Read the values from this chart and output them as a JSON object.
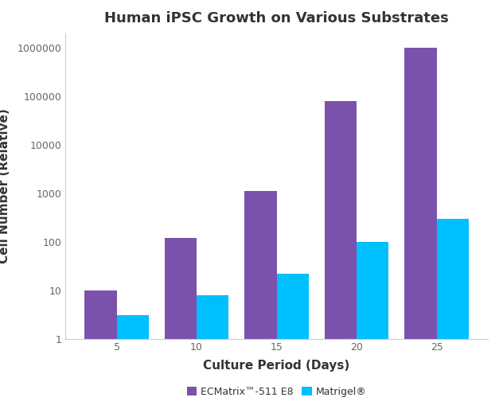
{
  "title": "Human iPSC Growth on Various Substrates",
  "xlabel": "Culture Period (Days)",
  "ylabel": "Cell Number (Relative)",
  "categories": [
    5,
    10,
    15,
    20,
    25
  ],
  "series": [
    {
      "label": "ECMatrix™-511 E8",
      "color": "#7B52AB",
      "values": [
        10,
        120,
        1100,
        80000,
        1000000
      ]
    },
    {
      "label": "Matrigel®",
      "color": "#00BFFF",
      "values": [
        3,
        8,
        22,
        100,
        300
      ]
    }
  ],
  "ylim": [
    1,
    2000000
  ],
  "background_color": "#FFFFFF",
  "title_fontsize": 13,
  "label_fontsize": 11,
  "tick_fontsize": 9,
  "bar_width": 0.4,
  "legend_fontsize": 9
}
